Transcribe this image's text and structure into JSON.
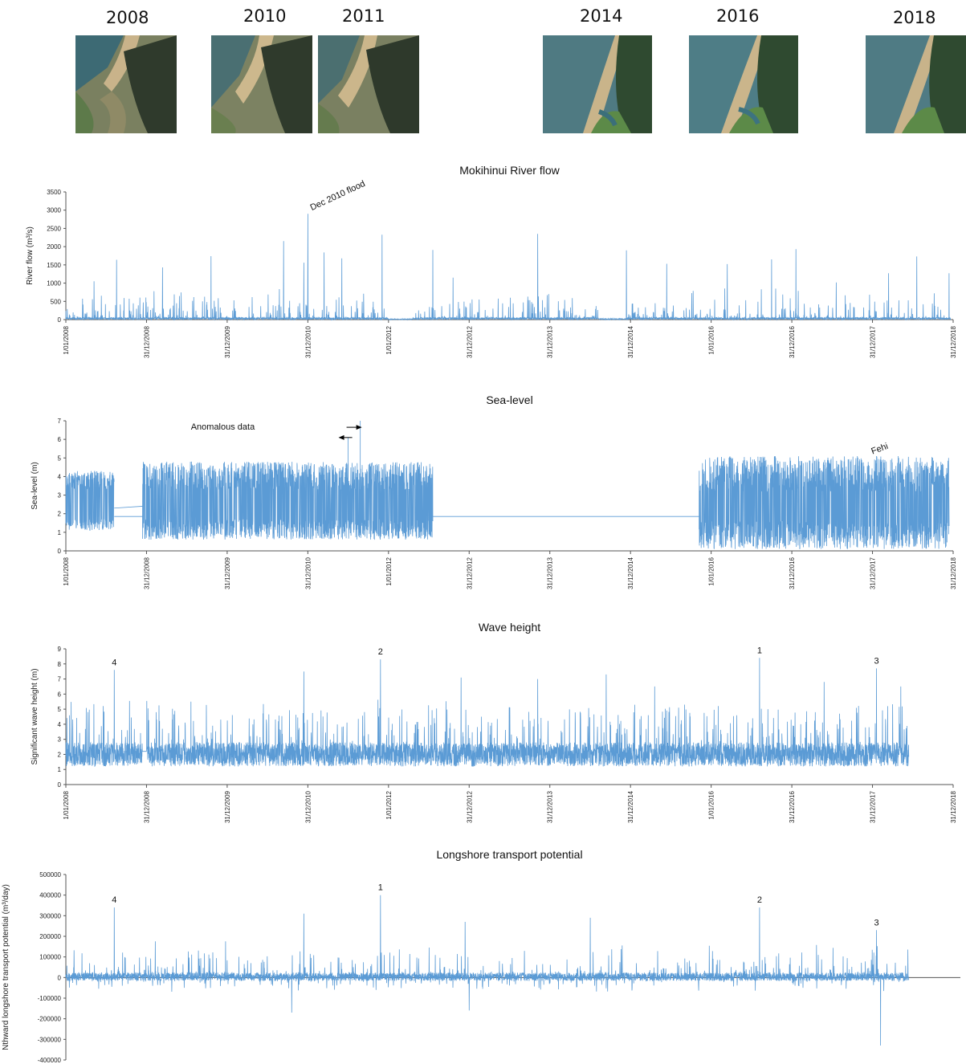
{
  "photos": [
    {
      "year": "2008"
    },
    {
      "year": "2010"
    },
    {
      "year": "2011"
    },
    {
      "year": "2014"
    },
    {
      "year": "2016"
    },
    {
      "year": "2018"
    }
  ],
  "colors": {
    "series": "#5b9bd5",
    "axis": "#555555"
  },
  "x_tick_labels": [
    "1/01/2008",
    "31/12/2008",
    "31/12/2009",
    "31/12/2010",
    "1/01/2012",
    "31/12/2012",
    "31/12/2013",
    "31/12/2014",
    "1/01/2016",
    "31/12/2016",
    "31/12/2017",
    "31/12/2018"
  ],
  "chart_data": [
    {
      "type": "line",
      "title": "Mokihinui River flow",
      "ylabel": "River flow (m³/s)",
      "xlabel": "",
      "ylim": [
        0,
        3500
      ],
      "yticks": [
        "0",
        "500",
        "1000",
        "1500",
        "2000",
        "2500",
        "3000",
        "3500"
      ],
      "grid": false,
      "annotations": [
        {
          "text": "Dec 2010 flood",
          "x": "31/12/2010",
          "y": 2900
        }
      ],
      "peaks": [
        {
          "x": 2008.35,
          "y": 1050
        },
        {
          "x": 2008.63,
          "y": 1640
        },
        {
          "x": 2009.2,
          "y": 1430
        },
        {
          "x": 2009.8,
          "y": 1740
        },
        {
          "x": 2010.7,
          "y": 2150
        },
        {
          "x": 2010.95,
          "y": 1560
        },
        {
          "x": 2011.0,
          "y": 2900
        },
        {
          "x": 2011.2,
          "y": 1840
        },
        {
          "x": 2011.42,
          "y": 1680
        },
        {
          "x": 2011.92,
          "y": 2330
        },
        {
          "x": 2012.55,
          "y": 1910
        },
        {
          "x": 2012.8,
          "y": 1150
        },
        {
          "x": 2013.85,
          "y": 2350
        },
        {
          "x": 2014.95,
          "y": 1900
        },
        {
          "x": 2015.45,
          "y": 1530
        },
        {
          "x": 2016.2,
          "y": 1520
        },
        {
          "x": 2016.75,
          "y": 1650
        },
        {
          "x": 2017.05,
          "y": 1930
        },
        {
          "x": 2017.55,
          "y": 1020
        },
        {
          "x": 2018.2,
          "y": 1270
        },
        {
          "x": 2018.55,
          "y": 1730
        },
        {
          "x": 2018.95,
          "y": 1270
        }
      ]
    },
    {
      "type": "line",
      "title": "Sea-level",
      "ylabel": "Sea-level (m)",
      "xlabel": "",
      "ylim": [
        0,
        7
      ],
      "yticks": [
        "0",
        "1",
        "2",
        "3",
        "4",
        "5",
        "6",
        "7"
      ],
      "grid": false,
      "annotations": [
        {
          "text": "Anomalous data",
          "x": "2011.5",
          "y": 6.5
        },
        {
          "text": "Fehi",
          "x": "31/12/2017",
          "y": 5.1
        }
      ],
      "segments": [
        {
          "start": 2008.0,
          "end": 2008.6,
          "mean": 2.5,
          "range": [
            1.1,
            4.3
          ]
        },
        {
          "start": 2008.95,
          "end": 2012.55,
          "mean": 2.5,
          "range": [
            0.6,
            4.8
          ]
        },
        {
          "start": 2015.85,
          "end": 2018.95,
          "mean": 2.4,
          "range": [
            0.1,
            5.1
          ]
        }
      ],
      "anomalies": [
        {
          "x": 2011.5,
          "y": 6.1
        },
        {
          "x": 2011.65,
          "y": 7.0
        }
      ],
      "gap_value": 1.85
    },
    {
      "type": "line",
      "title": "Wave height",
      "ylabel": "Significant wave height (m)",
      "xlabel": "",
      "ylim": [
        0,
        9
      ],
      "yticks": [
        "0",
        "1",
        "2",
        "3",
        "4",
        "5",
        "6",
        "7",
        "8",
        "9"
      ],
      "grid": false,
      "annotations": [
        {
          "text": "4",
          "x": "2008.6",
          "y": 7.6
        },
        {
          "text": "2",
          "x": "2011.9",
          "y": 8.3
        },
        {
          "text": "1",
          "x": "2016.6",
          "y": 8.4
        },
        {
          "text": "3",
          "x": "2018.05",
          "y": 7.7
        }
      ],
      "range": [
        2008.0,
        2018.45
      ],
      "peaks": [
        {
          "x": 2008.6,
          "y": 7.6
        },
        {
          "x": 2009.55,
          "y": 5.5
        },
        {
          "x": 2010.95,
          "y": 7.5
        },
        {
          "x": 2011.9,
          "y": 8.3
        },
        {
          "x": 2012.9,
          "y": 7.1
        },
        {
          "x": 2013.85,
          "y": 7.0
        },
        {
          "x": 2014.7,
          "y": 7.3
        },
        {
          "x": 2015.3,
          "y": 6.5
        },
        {
          "x": 2016.6,
          "y": 8.4
        },
        {
          "x": 2017.4,
          "y": 6.8
        },
        {
          "x": 2018.05,
          "y": 7.7
        },
        {
          "x": 2018.35,
          "y": 6.5
        }
      ]
    },
    {
      "type": "line",
      "title": "Longshore transport potential",
      "ylabel": "Nthward longshore transport potential (m³/day)",
      "xlabel": "",
      "ylim": [
        -400000,
        500000
      ],
      "yticks": [
        "-400000",
        "-300000",
        "-200000",
        "-100000",
        "0",
        "100000",
        "200000",
        "300000",
        "400000",
        "500000"
      ],
      "grid": false,
      "annotations": [
        {
          "text": "4",
          "x": "2008.6",
          "y": 340000
        },
        {
          "text": "1",
          "x": "2011.9",
          "y": 400000
        },
        {
          "text": "2",
          "x": "2016.6",
          "y": 340000
        },
        {
          "text": "3",
          "x": "2018.05",
          "y": 230000
        }
      ],
      "range": [
        2008.0,
        2018.45
      ],
      "peaks": [
        {
          "x": 2008.6,
          "y": 340000
        },
        {
          "x": 2010.95,
          "y": 310000
        },
        {
          "x": 2011.9,
          "y": 400000
        },
        {
          "x": 2012.95,
          "y": 270000
        },
        {
          "x": 2014.5,
          "y": 290000
        },
        {
          "x": 2016.6,
          "y": 340000
        },
        {
          "x": 2018.05,
          "y": 230000
        }
      ],
      "troughs": [
        {
          "x": 2010.8,
          "y": -170000
        },
        {
          "x": 2013.0,
          "y": -160000
        },
        {
          "x": 2018.1,
          "y": -330000
        }
      ]
    }
  ]
}
